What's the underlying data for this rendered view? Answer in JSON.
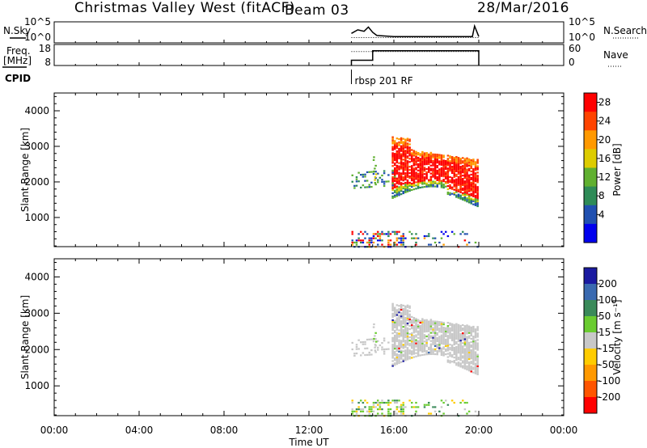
{
  "header": {
    "station": "Christmas Valley West (fitACF)",
    "beam": "Beam 03",
    "date": "28/Mar/2016"
  },
  "left_labels": {
    "nsky": "N.Sky",
    "freq_line1": "Freq.",
    "freq_line2": "[MHz]",
    "cpid": "CPID"
  },
  "right_labels": {
    "nsearch": "N.Search",
    "nave": "Nave"
  },
  "cpid_annotation": "rbsp 201 RF",
  "chart_data": [
    {
      "type": "line",
      "name": "noise-panel",
      "y_left_ticks": [
        "10^5",
        "10^0"
      ],
      "y_right_ticks": [
        "10^5",
        "10^0"
      ],
      "series": [
        {
          "name": "N.Sky",
          "style": "solid",
          "x": [
            14.0,
            14.3,
            14.6,
            14.8,
            15.0,
            15.2,
            16.0,
            18.0,
            19.7,
            19.8,
            20.0
          ],
          "y": [
            0.45,
            0.62,
            0.55,
            0.75,
            0.5,
            0.35,
            0.3,
            0.3,
            0.3,
            0.8,
            0.3
          ]
        },
        {
          "name": "N.Search",
          "style": "dotted",
          "x": [
            14.0,
            16.0,
            20.0
          ],
          "y": [
            0.25,
            0.25,
            0.25
          ]
        }
      ]
    },
    {
      "type": "line",
      "name": "frequency-panel",
      "y_left_ticks": [
        "18",
        "8"
      ],
      "y_right_ticks": [
        "60",
        "0"
      ],
      "series": [
        {
          "name": "Freq",
          "style": "solid",
          "x": [
            14.0,
            14.0,
            15.0,
            15.0,
            20.0,
            20.0
          ],
          "y": [
            8,
            10.5,
            10.5,
            15,
            15,
            8
          ]
        },
        {
          "name": "Nave",
          "style": "dotted",
          "x": [
            14.0,
            20.0
          ],
          "y": [
            40,
            40
          ]
        }
      ]
    },
    {
      "type": "heatmap",
      "name": "power-panel",
      "ylabel": "Slant Range [km]",
      "y_ticks": [
        1000,
        2000,
        3000,
        4000
      ],
      "ylim": [
        180,
        4500
      ],
      "xlim": [
        0,
        24
      ],
      "colorbar": {
        "label": "Power [dB]",
        "ticks": [
          "28",
          "24",
          "20",
          "16",
          "12",
          "8",
          "4"
        ],
        "colors": [
          "#ff0000",
          "#ff4400",
          "#ff9900",
          "#ddcc00",
          "#60b030",
          "#2e8b57",
          "#2050b0",
          "#0000ee"
        ]
      }
    },
    {
      "type": "heatmap",
      "name": "velocity-panel",
      "ylabel": "Slant Range [km]",
      "y_ticks": [
        1000,
        2000,
        3000,
        4000
      ],
      "ylim": [
        180,
        4500
      ],
      "xlim": [
        0,
        24
      ],
      "xlabel": "Time UT",
      "x_ticks": [
        "00:00",
        "04:00",
        "08:00",
        "12:00",
        "16:00",
        "20:00",
        "00:00"
      ],
      "colorbar": {
        "label": "Velocity [m s⁻¹]",
        "ticks": [
          "200",
          "100",
          "50",
          "15",
          "-15",
          "-50",
          "-100",
          "-200"
        ],
        "colors": [
          "#1a1aa0",
          "#3a6ab0",
          "#3a8a5a",
          "#6acc30",
          "#c8c8c8",
          "#ffcc00",
          "#ff9900",
          "#ff5500",
          "#ff0000"
        ]
      }
    }
  ]
}
